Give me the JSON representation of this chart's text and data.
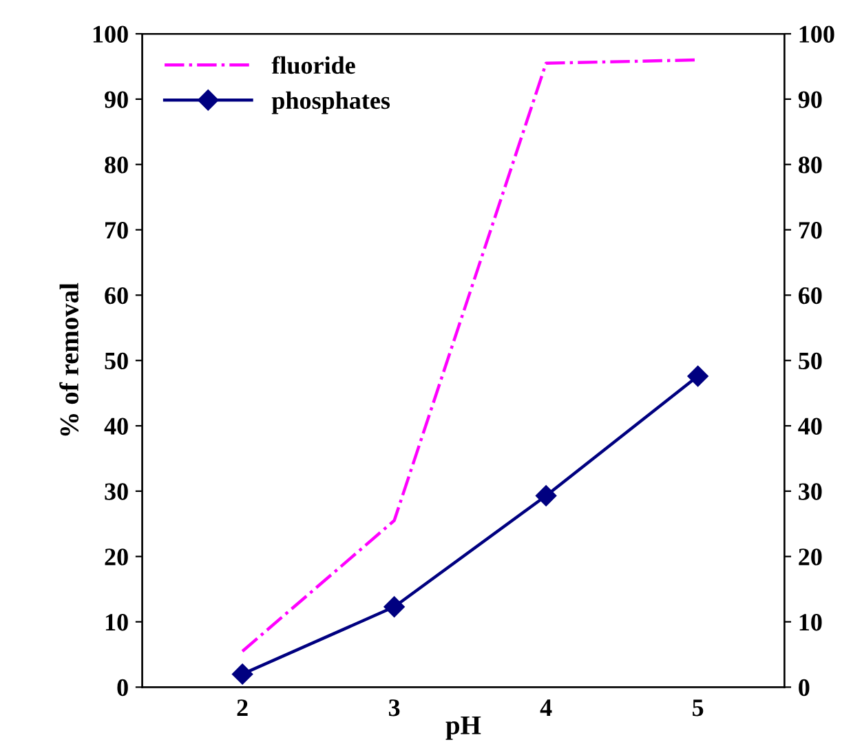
{
  "chart_data": {
    "type": "line",
    "xlabel": "pH",
    "ylabel": "% of removal",
    "categories": [
      "2",
      "3",
      "4",
      "5"
    ],
    "series": [
      {
        "name": "fluoride",
        "color": "#ff00ff",
        "values": [
          5.5,
          25.5,
          95.5,
          96
        ],
        "line_style": "dashdot",
        "marker": "none"
      },
      {
        "name": "phosphates",
        "color": "#000080",
        "values": [
          2,
          12.3,
          29.3,
          47.6
        ],
        "line_style": "solid",
        "marker": "diamond"
      }
    ],
    "ylim": [
      0,
      100
    ],
    "yticks": [
      0,
      10,
      20,
      30,
      40,
      50,
      60,
      70,
      80,
      90,
      100
    ],
    "y2lim": [
      0,
      100
    ],
    "y2ticks": [
      0,
      10,
      20,
      30,
      40,
      50,
      60,
      70,
      80,
      90,
      100
    ],
    "grid": false,
    "legend": "top left"
  }
}
